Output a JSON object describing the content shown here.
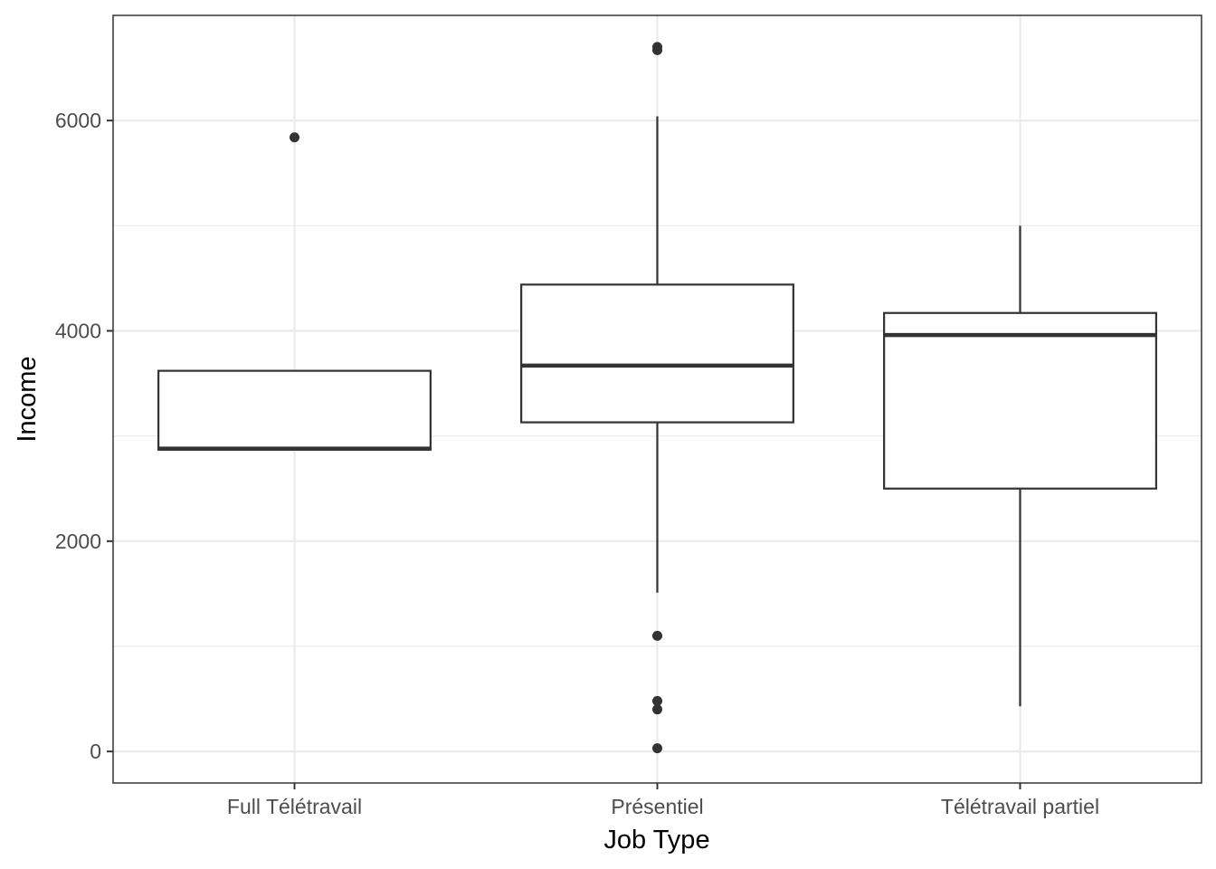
{
  "chart_data": {
    "type": "box",
    "xlabel": "Job Type",
    "ylabel": "Income",
    "ylim": [
      -300,
      7000
    ],
    "yticks": [
      0,
      2000,
      4000,
      6000
    ],
    "ytick_labels": [
      "0",
      "2000",
      "4000",
      "6000"
    ],
    "y_minor_ticks": [
      1000,
      3000,
      5000
    ],
    "grid": true,
    "theme": "bw",
    "colors": {
      "box_stroke": "#333333",
      "box_fill": "#ffffff",
      "grid": "#ebebeb",
      "panel_border": "#333333",
      "outlier": "#333333"
    },
    "categories": [
      "Full Télétravail",
      "Présentiel",
      "Télétravail partiel"
    ],
    "boxes": [
      {
        "category": "Full Télétravail",
        "lower_whisker": 2870,
        "q1": 2870,
        "median": 2880,
        "q3": 3620,
        "upper_whisker": 3620,
        "outliers": [
          5840
        ]
      },
      {
        "category": "Présentiel",
        "lower_whisker": 1510,
        "q1": 3130,
        "median": 3670,
        "q3": 4440,
        "upper_whisker": 6040,
        "outliers": [
          6700,
          6670,
          1100,
          480,
          400,
          30
        ]
      },
      {
        "category": "Télétravail partiel",
        "lower_whisker": 430,
        "q1": 2500,
        "median": 3960,
        "q3": 4170,
        "upper_whisker": 5000,
        "outliers": []
      }
    ]
  }
}
